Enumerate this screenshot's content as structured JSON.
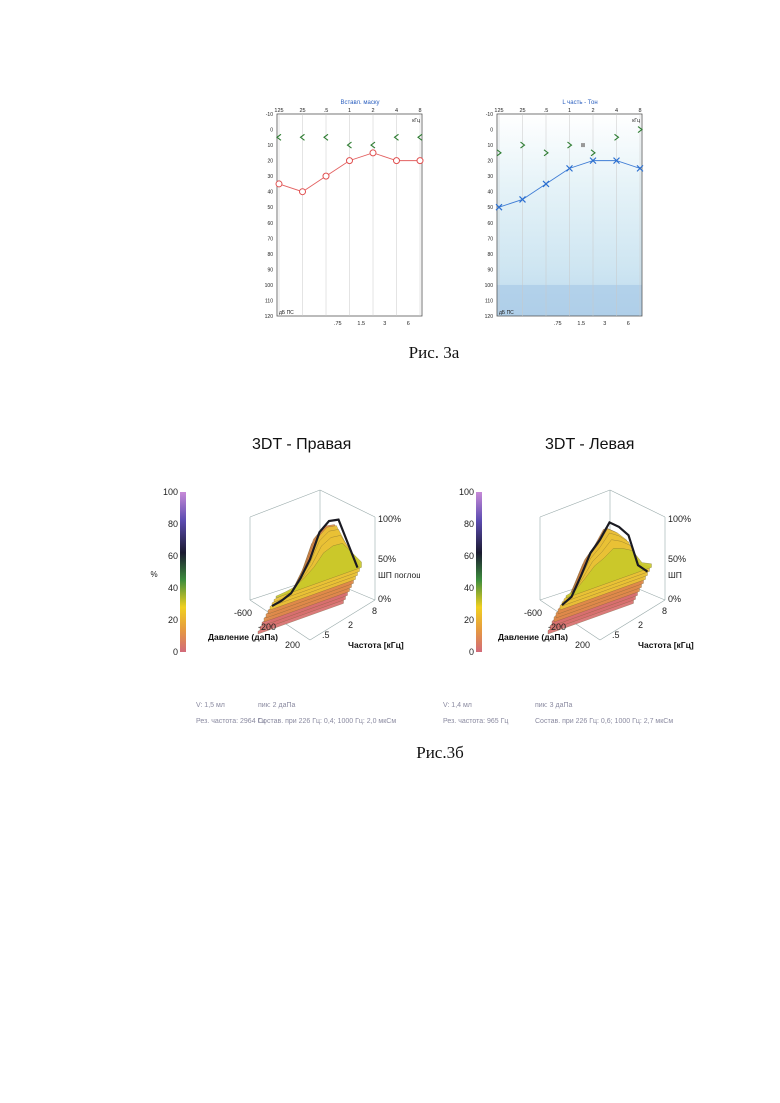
{
  "figure_a": {
    "caption": "Рис. 3а",
    "left": {
      "title": "Вставл. маску",
      "freq_top": [
        "125",
        "25",
        ".5",
        "1",
        "2",
        "4",
        "8"
      ],
      "freq_bottom": [
        ".75",
        "1.5",
        "3",
        "6"
      ],
      "unit": "кГц",
      "db_ticks": [
        "-10",
        "0",
        "10",
        "20",
        "30",
        "40",
        "50",
        "60",
        "70",
        "80",
        "90",
        "100",
        "110",
        "120"
      ],
      "axis_label": "дБ ПС",
      "symbol_color": "#e05050",
      "marker_color": "#2e7d32"
    },
    "right": {
      "title": "L часть - Тон",
      "freq_top": [
        "125",
        "25",
        ".5",
        "1",
        "2",
        "4",
        "8"
      ],
      "freq_bottom": [
        ".75",
        "1.5",
        "3",
        "6"
      ],
      "unit": "кГц",
      "db_ticks": [
        "-10",
        "0",
        "10",
        "20",
        "30",
        "40",
        "50",
        "60",
        "70",
        "80",
        "90",
        "100",
        "110",
        "120"
      ],
      "axis_label": "дБ ПС",
      "symbol_color": "#2b6fd0",
      "marker_color": "#2e7d32"
    }
  },
  "figure_b": {
    "caption": "Рис.3б",
    "right_panel": {
      "title": "3DT - Правая",
      "scale_ticks": [
        "100",
        "80",
        "60",
        "40",
        "20",
        "0"
      ],
      "scale_unit": "%",
      "z_ticks": [
        "100%",
        "50%",
        "0%"
      ],
      "z_label": "ШП поглоще",
      "pressure_ticks": [
        "-600",
        "-200",
        "200"
      ],
      "pressure_label": "Давление (даПа)",
      "freq_ticks": [
        ".5",
        "2",
        "8"
      ],
      "freq_label": "Частота [кГц]",
      "meta": [
        "V: 1,5 мл",
        "пик: 2 даПа",
        "Рез. частота: 2964 Гц",
        "Состав. при 226 Гц: 0,4; 1000 Гц: 2,0 мкСм"
      ]
    },
    "left_panel": {
      "title": "3DT - Левая",
      "scale_ticks": [
        "100",
        "80",
        "60",
        "40",
        "20",
        "0"
      ],
      "z_ticks": [
        "100%",
        "50%",
        "0%"
      ],
      "z_label": "ШП",
      "pressure_ticks": [
        "-600",
        "-200",
        "200"
      ],
      "pressure_label": "Давление (даПа)",
      "freq_ticks": [
        ".5",
        "2",
        "8"
      ],
      "freq_label": "Частота [кГц]",
      "meta": [
        "V: 1,4 мл",
        "пик: 3 даПа",
        "Рез. частота: 965 Гц",
        "Состав. при 226 Гц: 0,6; 1000 Гц: 2,7 мкСм"
      ]
    }
  },
  "chart_data": [
    {
      "type": "line",
      "title": "Вставл. маску",
      "x": [
        125,
        250,
        500,
        1000,
        2000,
        4000,
        8000
      ],
      "series": [
        {
          "values": [
            35,
            40,
            30,
            20,
            15,
            20,
            20
          ],
          "color": "#e05050",
          "marker": "o"
        },
        {
          "values": [
            5,
            5,
            5,
            10,
            10,
            5,
            5
          ],
          "color": "#2e7d32",
          "marker": "<"
        }
      ],
      "ylim": [
        -10,
        120
      ],
      "y_inverted": true
    },
    {
      "type": "line",
      "title": "L часть - Тон",
      "x": [
        125,
        250,
        500,
        1000,
        2000,
        4000,
        8000
      ],
      "series": [
        {
          "values": [
            50,
            45,
            35,
            25,
            20,
            20,
            25
          ],
          "color": "#2b6fd0",
          "marker": "x"
        },
        {
          "values": [
            15,
            10,
            15,
            10,
            15,
            5,
            0
          ],
          "color": "#2e7d32",
          "marker": ">"
        }
      ],
      "ylim": [
        -10,
        120
      ],
      "y_inverted": true
    }
  ]
}
